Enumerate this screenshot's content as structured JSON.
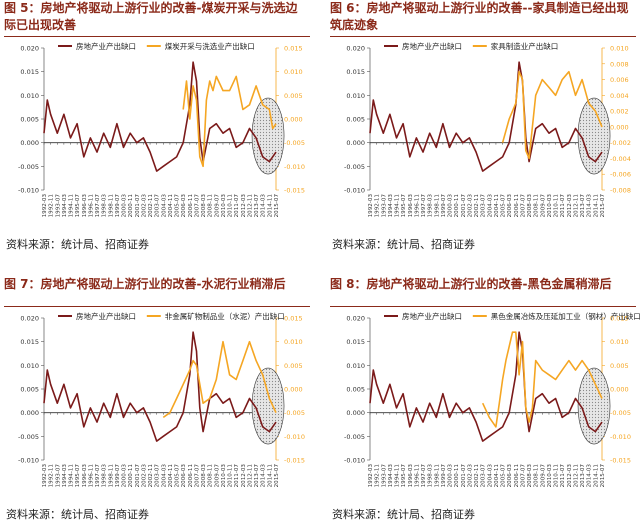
{
  "charts": [
    {
      "title": "图 5：房地产将驱动上游行业的改善-煤炭开采与洗选边际已出现改善",
      "source": "资料来源：统计局、招商证券",
      "chart_data": {
        "type": "line",
        "legend": [
          "房地产业产出缺口",
          "煤炭开采与洗选业产出缺口"
        ],
        "left_ticks": [
          "0.020",
          "0.015",
          "0.010",
          "0.005",
          "0.000",
          "-0.005",
          "-0.010"
        ],
        "right_ticks": [
          "0.015",
          "0.010",
          "0.005",
          "0.000",
          "-0.005",
          "-0.010",
          "-0.015"
        ],
        "x_ticks": [
          "1992-03",
          "1992-11",
          "1993-07",
          "1994-03",
          "1994-11",
          "1995-07",
          "1996-03",
          "1996-11",
          "1997-07",
          "1998-03",
          "1998-11",
          "1999-07",
          "2000-03",
          "2000-11",
          "2001-07",
          "2002-03",
          "2002-11",
          "2003-07",
          "2004-03",
          "2004-11",
          "2005-07",
          "2006-03",
          "2006-11",
          "2007-07",
          "2008-03",
          "2008-11",
          "2009-07",
          "2010-03",
          "2010-11",
          "2011-07",
          "2012-03",
          "2012-11",
          "2013-07",
          "2014-03",
          "2014-11",
          "2015-07"
        ],
        "ylim_left": [
          -0.01,
          0.02
        ],
        "ylim_right": [
          -0.015,
          0.015
        ],
        "series": [
          {
            "name": "房地产业产出缺口",
            "color": "#7b1a1a",
            "axis": "left",
            "x": [
              0,
              0.5,
              1,
              2,
              3,
              4,
              5,
              6,
              7,
              8,
              9,
              10,
              11,
              12,
              13,
              14,
              15,
              16,
              17,
              18,
              19,
              20,
              21,
              22,
              22.5,
              23,
              23.5,
              24,
              25,
              26,
              27,
              28,
              29,
              30,
              31,
              32,
              33,
              34,
              35
            ],
            "y": [
              0.002,
              0.009,
              0.006,
              0.002,
              0.006,
              0.001,
              0.004,
              -0.003,
              0.001,
              -0.002,
              0.002,
              -0.001,
              0.004,
              -0.001,
              0.002,
              0,
              0.001,
              -0.002,
              -0.006,
              -0.005,
              -0.004,
              -0.003,
              0,
              0.008,
              0.017,
              0.013,
              0.001,
              -0.004,
              0.003,
              0.004,
              0.002,
              0.003,
              -0.001,
              0,
              0.003,
              0.001,
              -0.003,
              -0.004,
              -0.002
            ]
          },
          {
            "name": "煤炭开采与洗选业产出缺口",
            "color": "#f5a623",
            "axis": "right",
            "x": [
              21,
              21.5,
              22,
              22.5,
              23,
              23.5,
              24,
              24.5,
              25,
              25.5,
              26,
              27,
              28,
              29,
              30,
              31,
              32,
              33,
              34,
              34.5,
              35
            ],
            "y": [
              0.002,
              0.008,
              0,
              0.007,
              0.004,
              -0.008,
              -0.01,
              0.004,
              0.008,
              0.006,
              0.009,
              0.006,
              0.006,
              0.009,
              0.002,
              0.003,
              0.007,
              0.003,
              0.002,
              -0.002,
              -0.001
            ]
          }
        ]
      }
    },
    {
      "title": "图 6：房地产将驱动上游行业的改善--家具制造已经出现筑底迹象",
      "source": "资料来源：统计局、招商证券",
      "chart_data": {
        "type": "line",
        "legend": [
          "房地产业产出缺口",
          "家具制造业产出缺口"
        ],
        "left_ticks": [
          "0.020",
          "0.015",
          "0.010",
          "0.005",
          "0.000",
          "-0.005",
          "-0.010"
        ],
        "right_ticks": [
          "0.010",
          "0.008",
          "0.006",
          "0.004",
          "0.002",
          "0.000",
          "-0.002",
          "-0.004",
          "-0.006",
          "-0.008"
        ],
        "x_ticks": [
          "1992-03",
          "1992-11",
          "1993-07",
          "1994-03",
          "1994-11",
          "1995-07",
          "1996-03",
          "1996-11",
          "1997-07",
          "1998-03",
          "1998-11",
          "1999-07",
          "2000-03",
          "2000-11",
          "2001-07",
          "2002-03",
          "2002-11",
          "2003-07",
          "2004-03",
          "2004-11",
          "2005-07",
          "2006-03",
          "2006-11",
          "2007-07",
          "2008-03",
          "2008-11",
          "2009-07",
          "2010-03",
          "2010-11",
          "2011-07",
          "2012-03",
          "2012-11",
          "2013-07",
          "2014-03",
          "2014-11",
          "2015-07"
        ],
        "ylim_left": [
          -0.01,
          0.02
        ],
        "ylim_right": [
          -0.008,
          0.01
        ],
        "series": [
          {
            "name": "房地产业产出缺口",
            "color": "#7b1a1a",
            "axis": "left",
            "x": [
              0,
              0.5,
              1,
              2,
              3,
              4,
              5,
              6,
              7,
              8,
              9,
              10,
              11,
              12,
              13,
              14,
              15,
              16,
              17,
              18,
              19,
              20,
              21,
              22,
              22.5,
              23,
              23.5,
              24,
              25,
              26,
              27,
              28,
              29,
              30,
              31,
              32,
              33,
              34,
              35
            ],
            "y": [
              0.002,
              0.009,
              0.006,
              0.002,
              0.006,
              0.001,
              0.004,
              -0.003,
              0.001,
              -0.002,
              0.002,
              -0.001,
              0.004,
              -0.001,
              0.002,
              0,
              0.001,
              -0.002,
              -0.006,
              -0.005,
              -0.004,
              -0.003,
              0,
              0.008,
              0.017,
              0.013,
              0.001,
              -0.004,
              0.003,
              0.004,
              0.002,
              0.003,
              -0.001,
              0,
              0.003,
              0.001,
              -0.003,
              -0.004,
              -0.002
            ]
          },
          {
            "name": "家具制造业产出缺口",
            "color": "#f5a623",
            "axis": "right",
            "x": [
              20,
              21,
              22,
              22.5,
              23,
              23.5,
              24,
              25,
              26,
              27,
              28,
              29,
              30,
              31,
              32,
              33,
              34,
              35
            ],
            "y": [
              -0.002,
              0.001,
              0.003,
              0.007,
              0.006,
              -0.003,
              -0.004,
              0.004,
              0.006,
              0.005,
              0.004,
              0.006,
              0.007,
              0.004,
              0.006,
              0.003,
              0.002,
              0
            ]
          }
        ]
      }
    },
    {
      "title": "图 7：房地产将驱动上游行业的改善-水泥行业稍滞后",
      "source": "资料来源：统计局、招商证券",
      "chart_data": {
        "type": "line",
        "legend": [
          "房地产业产出缺口",
          "非金属矿物制品业（水泥）产出缺口"
        ],
        "left_ticks": [
          "0.020",
          "0.015",
          "0.010",
          "0.005",
          "0.000",
          "-0.005",
          "-0.010"
        ],
        "right_ticks": [
          "0.015",
          "0.010",
          "0.005",
          "0.000",
          "-0.005",
          "-0.010",
          "-0.015"
        ],
        "x_ticks": [
          "1992-03",
          "1992-11",
          "1993-07",
          "1994-03",
          "1994-11",
          "1995-07",
          "1996-03",
          "1996-11",
          "1997-07",
          "1998-03",
          "1998-11",
          "1999-07",
          "2000-03",
          "2000-11",
          "2001-07",
          "2002-03",
          "2002-11",
          "2003-07",
          "2004-03",
          "2004-11",
          "2005-07",
          "2006-03",
          "2006-11",
          "2007-07",
          "2008-03",
          "2008-11",
          "2009-07",
          "2010-03",
          "2010-11",
          "2011-07",
          "2012-03",
          "2012-11",
          "2013-07",
          "2014-03",
          "2014-11",
          "2015-07"
        ],
        "ylim_left": [
          -0.01,
          0.02
        ],
        "ylim_right": [
          -0.015,
          0.015
        ],
        "series": [
          {
            "name": "房地产业产出缺口",
            "color": "#7b1a1a",
            "axis": "left",
            "x": [
              0,
              0.5,
              1,
              2,
              3,
              4,
              5,
              6,
              7,
              8,
              9,
              10,
              11,
              12,
              13,
              14,
              15,
              16,
              17,
              18,
              19,
              20,
              21,
              22,
              22.5,
              23,
              23.5,
              24,
              25,
              26,
              27,
              28,
              29,
              30,
              31,
              32,
              33,
              34,
              35
            ],
            "y": [
              0.002,
              0.009,
              0.006,
              0.002,
              0.006,
              0.001,
              0.004,
              -0.003,
              0.001,
              -0.002,
              0.002,
              -0.001,
              0.004,
              -0.001,
              0.002,
              0,
              0.001,
              -0.002,
              -0.006,
              -0.005,
              -0.004,
              -0.003,
              0,
              0.008,
              0.017,
              0.013,
              0.001,
              -0.004,
              0.003,
              0.004,
              0.002,
              0.003,
              -0.001,
              0,
              0.003,
              0.001,
              -0.003,
              -0.004,
              -0.002
            ]
          },
          {
            "name": "非金属矿物制品业（水泥）产出缺口",
            "color": "#f5a623",
            "axis": "right",
            "x": [
              18,
              19,
              20,
              21,
              22,
              22.5,
              23,
              24,
              25,
              26,
              27,
              28,
              29,
              30,
              31,
              32,
              33,
              34,
              35
            ],
            "y": [
              -0.006,
              -0.005,
              -0.002,
              0.001,
              0.004,
              0.006,
              0.005,
              -0.003,
              -0.002,
              0.002,
              0.01,
              0.003,
              0.002,
              0.006,
              0.01,
              0.006,
              0.003,
              -0.002,
              -0.005
            ]
          }
        ]
      }
    },
    {
      "title": "图 8：房地产将驱动上游行业的改善-黑色金属稍滞后",
      "source": "资料来源：统计局、招商证券",
      "chart_data": {
        "type": "line",
        "legend": [
          "房地产业产出缺口",
          "黑色金属冶炼及压延加工业（钢材）产出缺口"
        ],
        "left_ticks": [
          "0.020",
          "0.015",
          "0.010",
          "0.005",
          "0.000",
          "-0.005",
          "-0.010"
        ],
        "right_ticks": [
          "0.015",
          "0.010",
          "0.005",
          "0.000",
          "-0.005",
          "-0.010",
          "-0.015"
        ],
        "x_ticks": [
          "1992-03",
          "1992-11",
          "1993-07",
          "1994-03",
          "1994-11",
          "1995-07",
          "1996-03",
          "1996-11",
          "1997-07",
          "1998-03",
          "1998-11",
          "1999-07",
          "2000-03",
          "2000-11",
          "2001-07",
          "2002-03",
          "2002-11",
          "2003-07",
          "2004-03",
          "2004-11",
          "2005-07",
          "2006-03",
          "2006-11",
          "2007-07",
          "2008-03",
          "2008-11",
          "2009-07",
          "2010-03",
          "2010-11",
          "2011-07",
          "2012-03",
          "2012-11",
          "2013-07",
          "2014-03",
          "2014-11",
          "2015-07"
        ],
        "ylim_left": [
          -0.01,
          0.02
        ],
        "ylim_right": [
          -0.015,
          0.015
        ],
        "series": [
          {
            "name": "房地产业产出缺口",
            "color": "#7b1a1a",
            "axis": "left",
            "x": [
              0,
              0.5,
              1,
              2,
              3,
              4,
              5,
              6,
              7,
              8,
              9,
              10,
              11,
              12,
              13,
              14,
              15,
              16,
              17,
              18,
              19,
              20,
              21,
              22,
              22.5,
              23,
              23.5,
              24,
              25,
              26,
              27,
              28,
              29,
              30,
              31,
              32,
              33,
              34,
              35
            ],
            "y": [
              0.002,
              0.009,
              0.006,
              0.002,
              0.006,
              0.001,
              0.004,
              -0.003,
              0.001,
              -0.002,
              0.002,
              -0.001,
              0.004,
              -0.001,
              0.002,
              0,
              0.001,
              -0.002,
              -0.006,
              -0.005,
              -0.004,
              -0.003,
              0,
              0.008,
              0.017,
              0.013,
              0.001,
              -0.004,
              0.003,
              0.004,
              0.002,
              0.003,
              -0.001,
              0,
              0.003,
              0.001,
              -0.003,
              -0.004,
              -0.002
            ]
          },
          {
            "name": "黑色金属冶炼及压延加工业（钢材）产出缺口",
            "color": "#f5a623",
            "axis": "right",
            "x": [
              17,
              18,
              19,
              19.5,
              20,
              20.5,
              21,
              21.5,
              22,
              22.5,
              23,
              23.5,
              24,
              24.5,
              25,
              26,
              27,
              28,
              29,
              30,
              31,
              32,
              33,
              34,
              35
            ],
            "y": [
              -0.003,
              -0.006,
              -0.008,
              -0.003,
              0.002,
              0.006,
              0.009,
              0.012,
              0.012,
              0.003,
              0.01,
              -0.004,
              -0.007,
              -0.004,
              0.006,
              0.004,
              0.003,
              0.002,
              0.004,
              0.006,
              0.004,
              0.006,
              0.004,
              0.001,
              -0.002
            ]
          }
        ]
      }
    }
  ]
}
